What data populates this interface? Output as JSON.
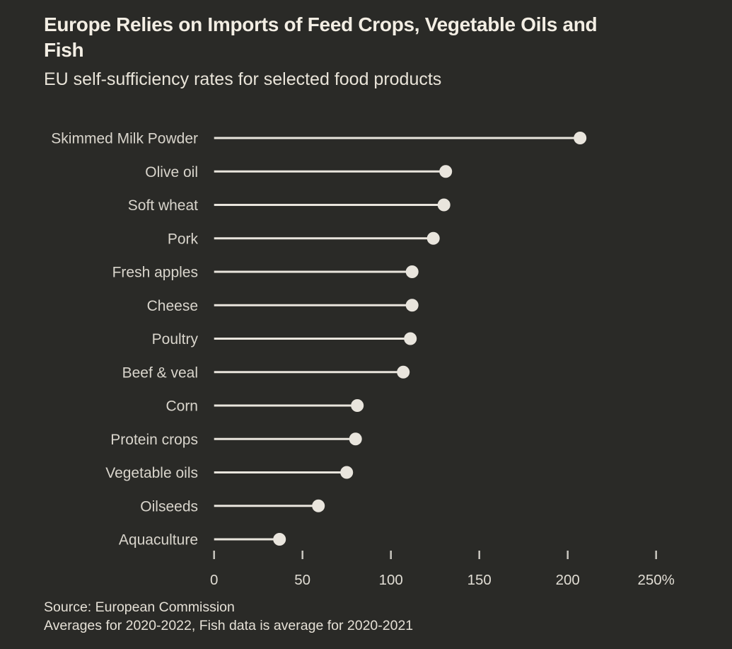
{
  "header": {
    "title_lines": [
      "Europe Relies on Imports of Feed Crops, Vegetable Oils and",
      "Fish"
    ],
    "subtitle": "EU self-sufficiency rates for selected food products"
  },
  "chart_data": {
    "type": "bar",
    "variant": "horizontal-lollipop",
    "title": "Europe Relies on Imports of Feed Crops, Vegetable Oils and Fish",
    "subtitle": "EU self-sufficiency rates for selected food products",
    "categories": [
      "Skimmed Milk Powder",
      "Olive oil",
      "Soft wheat",
      "Pork",
      "Fresh apples",
      "Cheese",
      "Poultry",
      "Beef & veal",
      "Corn",
      "Protein crops",
      "Vegetable oils",
      "Oilseeds",
      "Aquaculture"
    ],
    "values": [
      207,
      131,
      130,
      124,
      112,
      112,
      111,
      107,
      81,
      80,
      75,
      59,
      37
    ],
    "unit": "%",
    "xlabel": "",
    "ylabel": "",
    "xlim": [
      0,
      250
    ],
    "x_ticks": [
      0,
      50,
      100,
      150,
      200,
      250
    ],
    "x_tick_labels": [
      "0",
      "50",
      "100",
      "150",
      "200",
      "250%"
    ],
    "grid": false,
    "legend": false
  },
  "footer": {
    "source": "Source: European Commission",
    "note": "Averages for 2020-2022, Fish data is average for 2020-2021"
  },
  "colors": {
    "background": "#2a2a27",
    "title": "#f3eee4",
    "subtitle": "#e9e4d9",
    "category_label": "#d9d5cc",
    "lollipop": "#e9e5dd",
    "axis_tick": "#c9c6bf",
    "axis_tick_label": "#e0dcd3",
    "source_text": "#e5e0d6"
  }
}
